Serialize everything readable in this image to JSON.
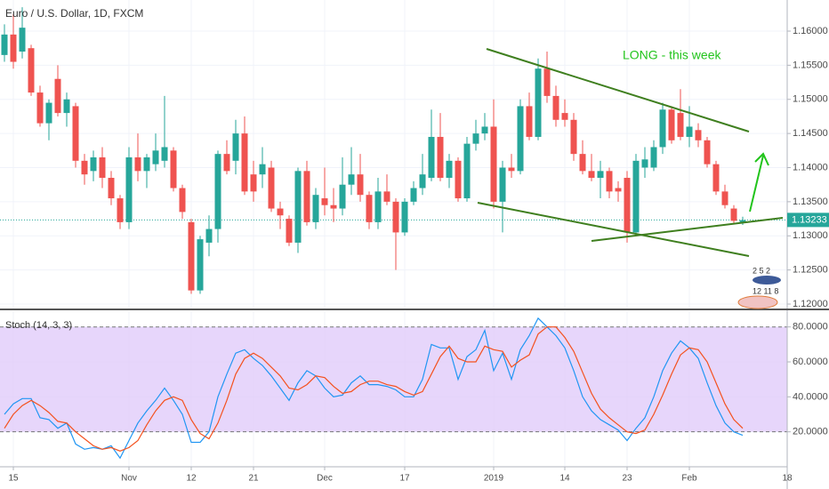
{
  "chart_data": [
    {
      "type": "candlestick",
      "title": "Euro / U.S. Dollar, 1D, FXCM",
      "annotation": "LONG - this week",
      "event_labels": [
        "2 5 2",
        "12 11 8"
      ],
      "up_color": "#26a69a",
      "down_color": "#ef5350",
      "last_price": 1.13233,
      "x": [
        0,
        1,
        2,
        3,
        4,
        5,
        6,
        7,
        8,
        9,
        10,
        11,
        12,
        13,
        14,
        15,
        16,
        17,
        18,
        19,
        20,
        21,
        22,
        23,
        24,
        25,
        26,
        27,
        28,
        29,
        30,
        31,
        32,
        33,
        34,
        35,
        36,
        37,
        38,
        39,
        40,
        41,
        42,
        43,
        44,
        45,
        46,
        47,
        48,
        49,
        50,
        51,
        52,
        53,
        54,
        55,
        56,
        57,
        58,
        59,
        60,
        61,
        62,
        63,
        64,
        65,
        66,
        67,
        68,
        69,
        70,
        71,
        72,
        73,
        74,
        75,
        76,
        77,
        78,
        79,
        80,
        81,
        82,
        83
      ],
      "open": [
        1.1565,
        1.1595,
        1.157,
        1.1575,
        1.151,
        1.1465,
        1.153,
        1.148,
        1.149,
        1.141,
        1.1395,
        1.1415,
        1.1385,
        1.1355,
        1.132,
        1.1415,
        1.1395,
        1.1405,
        1.141,
        1.1425,
        1.137,
        1.132,
        1.122,
        1.129,
        1.131,
        1.142,
        1.141,
        1.145,
        1.139,
        1.139,
        1.14,
        1.134,
        1.1325,
        1.129,
        1.1395,
        1.132,
        1.1355,
        1.1345,
        1.134,
        1.1375,
        1.139,
        1.136,
        1.132,
        1.1365,
        1.135,
        1.1305,
        1.135,
        1.137,
        1.1385,
        1.1445,
        1.1385,
        1.141,
        1.1355,
        1.1435,
        1.145,
        1.146,
        1.135,
        1.14,
        1.1395,
        1.149,
        1.1445,
        1.1545,
        1.1505,
        1.148,
        1.147,
        1.142,
        1.1395,
        1.1385,
        1.1395,
        1.137,
        1.1385,
        1.1305,
        1.14,
        1.14,
        1.143,
        1.1485,
        1.148,
        1.1445,
        1.1455,
        1.144,
        1.1405,
        1.1365,
        1.134,
        1.132
      ],
      "high": [
        1.161,
        1.1625,
        1.1635,
        1.158,
        1.152,
        1.15,
        1.155,
        1.151,
        1.1495,
        1.142,
        1.1425,
        1.143,
        1.1395,
        1.136,
        1.143,
        1.145,
        1.142,
        1.145,
        1.1505,
        1.143,
        1.1375,
        1.1325,
        1.13,
        1.133,
        1.1425,
        1.144,
        1.147,
        1.1475,
        1.141,
        1.143,
        1.141,
        1.135,
        1.133,
        1.14,
        1.141,
        1.137,
        1.14,
        1.137,
        1.1415,
        1.143,
        1.142,
        1.1365,
        1.1385,
        1.139,
        1.1355,
        1.1355,
        1.138,
        1.142,
        1.1485,
        1.148,
        1.142,
        1.1415,
        1.1445,
        1.147,
        1.148,
        1.15,
        1.141,
        1.142,
        1.15,
        1.151,
        1.156,
        1.157,
        1.152,
        1.15,
        1.148,
        1.144,
        1.142,
        1.141,
        1.14,
        1.138,
        1.1395,
        1.142,
        1.143,
        1.144,
        1.1495,
        1.149,
        1.1515,
        1.149,
        1.1465,
        1.1445,
        1.141,
        1.1375,
        1.1345,
        1.1328
      ],
      "low": [
        1.1555,
        1.1545,
        1.156,
        1.1505,
        1.146,
        1.144,
        1.1475,
        1.146,
        1.14,
        1.1375,
        1.138,
        1.137,
        1.1345,
        1.131,
        1.131,
        1.138,
        1.137,
        1.1395,
        1.14,
        1.1365,
        1.1325,
        1.1215,
        1.1215,
        1.127,
        1.129,
        1.139,
        1.139,
        1.136,
        1.135,
        1.137,
        1.1335,
        1.131,
        1.1285,
        1.1275,
        1.1315,
        1.131,
        1.133,
        1.132,
        1.133,
        1.136,
        1.135,
        1.131,
        1.131,
        1.1345,
        1.125,
        1.13,
        1.1345,
        1.136,
        1.138,
        1.138,
        1.137,
        1.135,
        1.135,
        1.1425,
        1.144,
        1.134,
        1.1305,
        1.1385,
        1.139,
        1.144,
        1.144,
        1.1495,
        1.146,
        1.146,
        1.141,
        1.139,
        1.138,
        1.1355,
        1.1355,
        1.135,
        1.129,
        1.13,
        1.1385,
        1.1395,
        1.142,
        1.1435,
        1.144,
        1.143,
        1.143,
        1.14,
        1.136,
        1.134,
        1.1318,
        1.1316
      ],
      "close": [
        1.1595,
        1.1555,
        1.1605,
        1.151,
        1.1465,
        1.1495,
        1.148,
        1.15,
        1.141,
        1.139,
        1.1415,
        1.1385,
        1.1355,
        1.132,
        1.1415,
        1.1395,
        1.1415,
        1.1425,
        1.143,
        1.137,
        1.1335,
        1.122,
        1.1295,
        1.131,
        1.142,
        1.1395,
        1.145,
        1.1365,
        1.1365,
        1.1405,
        1.134,
        1.133,
        1.129,
        1.1395,
        1.132,
        1.136,
        1.1345,
        1.134,
        1.1375,
        1.139,
        1.136,
        1.132,
        1.1365,
        1.135,
        1.1305,
        1.135,
        1.137,
        1.139,
        1.1445,
        1.1385,
        1.141,
        1.1355,
        1.1435,
        1.145,
        1.146,
        1.135,
        1.14,
        1.1395,
        1.149,
        1.1445,
        1.1545,
        1.1505,
        1.147,
        1.147,
        1.142,
        1.1395,
        1.1385,
        1.1395,
        1.1365,
        1.1365,
        1.1305,
        1.141,
        1.1412,
        1.143,
        1.1485,
        1.144,
        1.1445,
        1.146,
        1.144,
        1.1405,
        1.1365,
        1.1345,
        1.1322,
        1.1323
      ],
      "xlim": [
        -0.5,
        88
      ],
      "xticks": [
        {
          "value": 1,
          "label": "15"
        },
        {
          "value": 14,
          "label": "Nov"
        },
        {
          "value": 21,
          "label": "12"
        },
        {
          "value": 28,
          "label": "21"
        },
        {
          "value": 36,
          "label": "Dec"
        },
        {
          "value": 45,
          "label": "17"
        },
        {
          "value": 55,
          "label": "2019"
        },
        {
          "value": 63,
          "label": "14"
        },
        {
          "value": 70,
          "label": "23"
        },
        {
          "value": 77,
          "label": "Feb"
        },
        {
          "value": 88,
          "label": "18"
        }
      ],
      "ylim": [
        1.11935,
        1.16456
      ],
      "yticks": [
        {
          "value": 1.12,
          "label": "1.12000"
        },
        {
          "value": 1.125,
          "label": "1.12500"
        },
        {
          "value": 1.13,
          "label": "1.13000"
        },
        {
          "value": 1.135,
          "label": "1.13500"
        },
        {
          "value": 1.14,
          "label": "1.14000"
        },
        {
          "value": 1.145,
          "label": "1.14500"
        },
        {
          "value": 1.15,
          "label": "1.15000"
        },
        {
          "value": 1.155,
          "label": "1.15500"
        },
        {
          "value": 1.16,
          "label": "1.16000"
        }
      ],
      "grid": true
    },
    {
      "type": "line",
      "title": "Stoch (14, 3, 3)",
      "band": [
        20,
        80
      ],
      "band_color": "#e1ccfa",
      "x": [
        0,
        1,
        2,
        3,
        4,
        5,
        6,
        7,
        8,
        9,
        10,
        11,
        12,
        13,
        14,
        15,
        16,
        17,
        18,
        19,
        20,
        21,
        22,
        23,
        24,
        25,
        26,
        27,
        28,
        29,
        30,
        31,
        32,
        33,
        34,
        35,
        36,
        37,
        38,
        39,
        40,
        41,
        42,
        43,
        44,
        45,
        46,
        47,
        48,
        49,
        50,
        51,
        52,
        53,
        54,
        55,
        56,
        57,
        58,
        59,
        60,
        61,
        62,
        63,
        64,
        65,
        66,
        67,
        68,
        69,
        70,
        71,
        72,
        73,
        74,
        75,
        76,
        77,
        78,
        79,
        80,
        81,
        82,
        83
      ],
      "series": [
        {
          "color": "#2196f3",
          "values": [
            30,
            36,
            39,
            39,
            28,
            27,
            22,
            25,
            13,
            10,
            11,
            10,
            12,
            5,
            15,
            25,
            32,
            38,
            45,
            38,
            30,
            14,
            14,
            20,
            40,
            53,
            65,
            67,
            62,
            58,
            52,
            45,
            38,
            48,
            55,
            52,
            45,
            40,
            41,
            48,
            52,
            47,
            47,
            46,
            44,
            40,
            40,
            50,
            70,
            68,
            68,
            50,
            63,
            67,
            78,
            55,
            65,
            50,
            67,
            75,
            85,
            80,
            75,
            68,
            55,
            40,
            32,
            27,
            24,
            21,
            15,
            22,
            28,
            40,
            55,
            65,
            72,
            68,
            62,
            48,
            35,
            25,
            20,
            18
          ]
        },
        {
          "color": "#f4511e",
          "values": [
            22,
            30,
            35,
            38,
            35,
            31,
            26,
            25,
            20,
            16,
            12,
            10,
            11,
            9,
            11,
            15,
            24,
            32,
            38,
            40,
            38,
            27,
            19,
            16,
            25,
            38,
            53,
            62,
            65,
            62,
            57,
            52,
            45,
            44,
            47,
            52,
            51,
            46,
            42,
            43,
            47,
            49,
            49,
            47,
            46,
            43,
            41,
            43,
            53,
            63,
            69,
            62,
            60,
            60,
            69,
            67,
            66,
            57,
            61,
            64,
            76,
            80,
            80,
            74,
            66,
            54,
            42,
            33,
            28,
            24,
            20,
            19,
            21,
            30,
            41,
            53,
            64,
            68,
            67,
            60,
            48,
            36,
            27,
            22
          ]
        }
      ],
      "xlim": [
        -0.5,
        88
      ],
      "ylim": [
        0,
        89
      ],
      "yticks": [
        {
          "value": 20,
          "label": "20.0000"
        },
        {
          "value": 40,
          "label": "40.0000"
        },
        {
          "value": 60,
          "label": "60.0000"
        },
        {
          "value": 80,
          "label": "80.0000"
        }
      ],
      "grid": true
    }
  ]
}
